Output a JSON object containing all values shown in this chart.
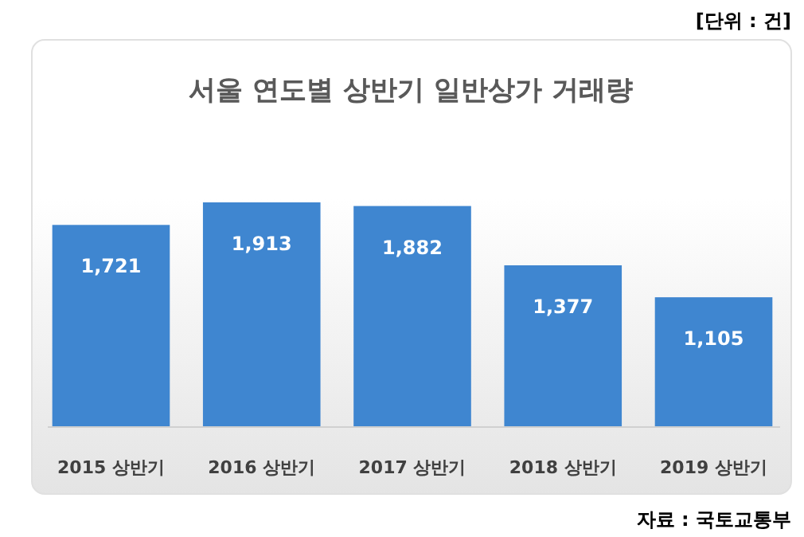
{
  "chart_data": {
    "type": "bar",
    "title": "서울 연도별 상반기 일반상가 거래량",
    "categories": [
      "2015 상반기",
      "2016 상반기",
      "2017 상반기",
      "2018 상반기",
      "2019 상반기"
    ],
    "values": [
      1721,
      1913,
      1882,
      1377,
      1105
    ],
    "color": "#3f86d0",
    "value_labels": [
      "1,721",
      "1,913",
      "1,882",
      "1,377",
      "1,105"
    ],
    "annotations": [
      "[단위 : 건]",
      "자료 : 국토교통부"
    ]
  }
}
